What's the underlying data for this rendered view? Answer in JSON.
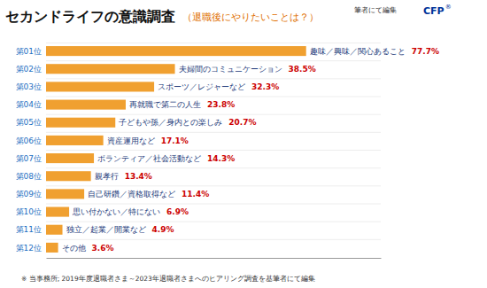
{
  "chart_data": {
    "type": "bar",
    "orientation": "horizontal",
    "title": "セカンドライフの意識調査",
    "subtitle": "（退職後にやりたいことは？）",
    "annotations": [
      "筆者にて編集",
      "CFP",
      "®",
      "※ 当事務所; 2019年度退職者さま～2023年退職者さまへのヒアリング調査を基筆者にて編集"
    ],
    "categories": [
      "趣味／興味／関心あること",
      "夫婦間のコミュニケーション",
      "スポーツ／レジャーなど",
      "再就職で第二の人生",
      "子どもや孫／身内との楽しみ",
      "資産運用など",
      "ボランティア／社会活動など",
      "親孝行",
      "自己研鑽／資格取得など",
      "思い付かない／特にない",
      "独立／起業／開業など",
      "その他"
    ],
    "ranks": [
      "第01位",
      "第02位",
      "第03位",
      "第04位",
      "第05位",
      "第06位",
      "第07位",
      "第08位",
      "第09位",
      "第10位",
      "第11位",
      "第12位"
    ],
    "values": [
      77.7,
      38.5,
      32.3,
      23.8,
      20.7,
      17.1,
      14.3,
      13.4,
      11.4,
      6.9,
      4.9,
      3.6
    ],
    "value_labels": [
      "77.7%",
      "38.5%",
      "32.3%",
      "23.8%",
      "20.7%",
      "17.1%",
      "14.3%",
      "13.4%",
      "11.4%",
      "6.9%",
      "4.9%",
      "3.6%"
    ],
    "data_labels": true,
    "color": "#F0A030",
    "xlim": [
      0,
      100
    ],
    "tick_labels": false
  }
}
